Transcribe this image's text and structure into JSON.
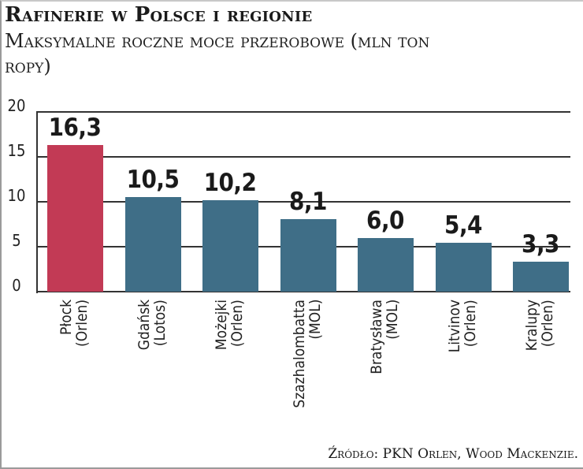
{
  "header": {
    "title": "Rafinerie w Polsce i regionie",
    "subtitle": "Maksymalne roczne moce przerobowe (mln ton ropy)"
  },
  "footer": {
    "source": "Źródło: PKN Orlen, Wood Mackenzie."
  },
  "colors": {
    "highlight": "#c23a55",
    "default": "#3f6e87",
    "grid": "#333333"
  },
  "chart_data": {
    "type": "bar",
    "title": "Rafinerie w Polsce i regionie",
    "subtitle": "Maksymalne roczne moce przerobowe (mln ton ropy)",
    "xlabel": "",
    "ylabel": "mln ton ropy",
    "ylim": [
      0,
      20
    ],
    "yticks": [
      0,
      5,
      10,
      15,
      20
    ],
    "grid": true,
    "legend": null,
    "categories": [
      "Płock (Orlen)",
      "Gdańsk (Lotos)",
      "Możejki (Orlen)",
      "Szazhalombatta (MOL)",
      "Bratysława (MOL)",
      "Litvinov (Orlen)",
      "Kralupy (Orlen)"
    ],
    "values": [
      16.3,
      10.5,
      10.2,
      8.1,
      6.0,
      5.4,
      3.3
    ],
    "value_labels": [
      "16,3",
      "10,5",
      "10,2",
      "8,1",
      "6,0",
      "5,4",
      "3,3"
    ],
    "highlighted": "Płock (Orlen)",
    "source": "Źródło: PKN Orlen, Wood Mackenzie."
  },
  "axis": {
    "y_ticks": [
      "0",
      "5",
      "10",
      "15",
      "20"
    ]
  },
  "bars": [
    {
      "name": "Płock",
      "owner": "(Orlen)",
      "label": "16,3"
    },
    {
      "name": "Gdańsk",
      "owner": "(Lotos)",
      "label": "10,5"
    },
    {
      "name": "Możejki",
      "owner": "(Orlen)",
      "label": "10,2"
    },
    {
      "name": "Szazhalombatta",
      "owner": "(MOL)",
      "label": "8,1"
    },
    {
      "name": "Bratysława",
      "owner": "(MOL)",
      "label": "6,0"
    },
    {
      "name": "Litvinov",
      "owner": "(Orlen)",
      "label": "5,4"
    },
    {
      "name": "Kralupy",
      "owner": "(Orlen)",
      "label": "3,3"
    }
  ]
}
